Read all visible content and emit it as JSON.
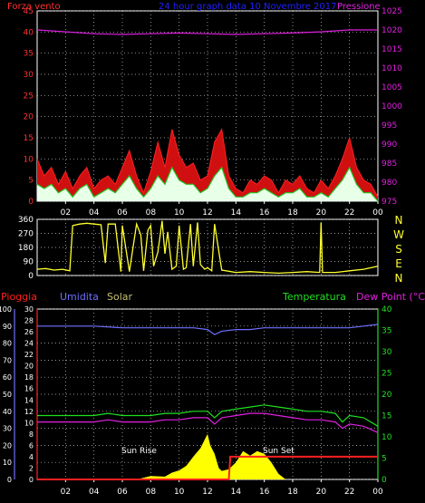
{
  "header": {
    "left": "Forza vento",
    "center": "24 hour graph data  10 Novembre 2017",
    "right": "Pressione"
  },
  "colors": {
    "grid": "#c8c8c8",
    "wind_axis": "#ff3030",
    "pressure_axis": "#e020e0",
    "direction": "#ffff30",
    "rain": "#ff2020",
    "humidity": "#6f6fff",
    "temperature": "#20e020",
    "dewpoint": "#e020e0",
    "solar": "#ffff00",
    "frame": "#ffffff"
  },
  "panel2_labels": {
    "rain": "Pioggia",
    "humidity": "Umidita",
    "solar": "Solar",
    "temperature": "Temperatura",
    "dewpoint": "Dew Point (°C)"
  },
  "compass": [
    "N",
    "W",
    "S",
    "E",
    "N"
  ],
  "sun_labels": {
    "rise": "Sun Rise",
    "set": "Sun Set"
  },
  "chart_data": [
    {
      "type": "line",
      "title": "24 hour graph data  10 Novembre 2017",
      "x_tick_labels": [
        "02",
        "04",
        "06",
        "08",
        "10",
        "12",
        "14",
        "16",
        "18",
        "20",
        "22",
        "00"
      ],
      "xlim": [
        0,
        24
      ],
      "y_left": {
        "label": "Forza vento",
        "ticks": [
          0,
          5,
          10,
          15,
          20,
          25,
          30,
          35,
          40,
          45
        ],
        "ylim": [
          0,
          45
        ]
      },
      "y_right": {
        "label": "Pressione",
        "ticks": [
          975,
          980,
          985,
          990,
          995,
          1000,
          1005,
          1010,
          1015,
          1020,
          1025
        ],
        "ylim": [
          975,
          1025
        ]
      },
      "series": [
        {
          "name": "Pressione",
          "axis": "right",
          "x": [
            0,
            2,
            4,
            6,
            8,
            10,
            12,
            14,
            16,
            18,
            20,
            22,
            24
          ],
          "values": [
            1020,
            1019.5,
            1019,
            1018.8,
            1019,
            1019.2,
            1019,
            1018.8,
            1019,
            1019.2,
            1019.5,
            1020,
            1020
          ]
        },
        {
          "name": "Raffica",
          "axis": "left",
          "x": [
            0,
            0.5,
            1,
            1.5,
            2,
            2.5,
            3,
            3.5,
            4,
            4.5,
            5,
            5.5,
            6,
            6.5,
            7,
            7.5,
            8,
            8.5,
            9,
            9.5,
            10,
            10.5,
            11,
            11.5,
            12,
            12.5,
            13,
            13.5,
            14,
            14.5,
            15,
            15.5,
            16,
            16.5,
            17,
            17.5,
            18,
            18.5,
            19,
            19.5,
            20,
            20.5,
            21,
            21.5,
            22,
            22.5,
            23,
            23.5,
            24
          ],
          "values": [
            10,
            6,
            8,
            4,
            7,
            3,
            6,
            8,
            3,
            5,
            6,
            4,
            8,
            12,
            6,
            2,
            7,
            14,
            8,
            17,
            11,
            8,
            9,
            5,
            6,
            14,
            17,
            6,
            3,
            2,
            5,
            4,
            6,
            5,
            2,
            5,
            4,
            6,
            3,
            2,
            5,
            3,
            6,
            10,
            15,
            8,
            5,
            4,
            1
          ]
        },
        {
          "name": "Vento",
          "axis": "left",
          "x": [
            0,
            0.5,
            1,
            1.5,
            2,
            2.5,
            3,
            3.5,
            4,
            4.5,
            5,
            5.5,
            6,
            6.5,
            7,
            7.5,
            8,
            8.5,
            9,
            9.5,
            10,
            10.5,
            11,
            11.5,
            12,
            12.5,
            13,
            13.5,
            14,
            14.5,
            15,
            15.5,
            16,
            16.5,
            17,
            17.5,
            18,
            18.5,
            19,
            19.5,
            20,
            20.5,
            21,
            21.5,
            22,
            22.5,
            23,
            23.5,
            24
          ],
          "values": [
            4,
            3,
            4,
            2,
            3,
            1,
            3,
            4,
            1,
            2,
            3,
            2,
            4,
            6,
            3,
            1,
            3,
            6,
            4,
            8,
            5,
            4,
            4,
            2,
            3,
            6,
            8,
            3,
            1,
            1,
            2,
            2,
            3,
            2,
            1,
            2,
            2,
            3,
            1,
            1,
            2,
            1,
            3,
            5,
            8,
            4,
            2,
            2,
            0
          ]
        }
      ]
    },
    {
      "type": "line",
      "x_tick_labels": [],
      "xlim": [
        0,
        24
      ],
      "y_left": {
        "ticks": [
          0,
          90,
          180,
          270,
          360
        ],
        "ylim": [
          0,
          360
        ]
      },
      "y_right": {
        "ticks": [
          "N",
          "W",
          "S",
          "E",
          "N"
        ]
      },
      "series": [
        {
          "name": "Direzione vento",
          "x": [
            0,
            0.6,
            1.2,
            1.8,
            2.3,
            2.5,
            3,
            3.5,
            4,
            4.5,
            4.8,
            5,
            5.5,
            5.9,
            6,
            6.5,
            7,
            7.3,
            7.5,
            7.8,
            8,
            8.2,
            8.5,
            8.8,
            9,
            9.2,
            9.5,
            9.8,
            10,
            10.3,
            10.5,
            10.8,
            11,
            11.3,
            11.5,
            11.8,
            12,
            12.3,
            12.5,
            13,
            14,
            15,
            16,
            17,
            18,
            19,
            19.9,
            20,
            20.1,
            21,
            22,
            23,
            24
          ],
          "values": [
            40,
            45,
            35,
            40,
            30,
            320,
            330,
            335,
            330,
            325,
            80,
            330,
            330,
            25,
            320,
            25,
            330,
            260,
            30,
            290,
            320,
            60,
            150,
            350,
            140,
            280,
            40,
            60,
            320,
            40,
            50,
            330,
            60,
            340,
            70,
            40,
            50,
            30,
            330,
            35,
            20,
            25,
            20,
            15,
            20,
            25,
            20,
            340,
            20,
            20,
            30,
            40,
            60
          ]
        }
      ]
    },
    {
      "type": "line",
      "x_tick_labels": [
        "02",
        "04",
        "06",
        "08",
        "10",
        "12",
        "14",
        "16",
        "18",
        "20",
        "22",
        "00"
      ],
      "xlim": [
        0,
        24
      ],
      "y_left_outer": {
        "label": "Umidita",
        "ticks": [
          0,
          10,
          20,
          30,
          40,
          50,
          60,
          70,
          80,
          90,
          100
        ],
        "ylim": [
          0,
          100
        ]
      },
      "y_left_inner": {
        "label": "Pioggia",
        "ticks": [
          0,
          2,
          4,
          6,
          8,
          10,
          12,
          14,
          16,
          18,
          20,
          22,
          24,
          26,
          28,
          30
        ],
        "ylim": [
          0,
          30
        ]
      },
      "y_right": {
        "label": "Temperatura / Dew Point (°C)",
        "ticks": [
          0,
          5,
          10,
          15,
          20,
          25,
          30,
          35,
          40
        ],
        "ylim": [
          0,
          40
        ]
      },
      "series": [
        {
          "name": "Umidita",
          "axis": "outer",
          "x": [
            0,
            2,
            4,
            6,
            8,
            10,
            11,
            12,
            12.5,
            13,
            14,
            15,
            16,
            17,
            18,
            20,
            22,
            23,
            24
          ],
          "values": [
            90,
            90,
            90,
            89,
            89,
            89,
            89,
            88,
            85,
            87,
            88,
            88,
            89,
            89,
            89,
            89,
            89,
            90,
            91
          ]
        },
        {
          "name": "Temperatura",
          "axis": "right",
          "x": [
            0,
            1,
            2,
            3,
            4,
            5,
            6,
            7,
            8,
            9,
            10,
            11,
            12,
            12.5,
            13,
            14,
            15,
            16,
            17,
            18,
            19,
            20,
            21,
            21.5,
            22,
            23,
            24
          ],
          "values": [
            15,
            15,
            15,
            15,
            15,
            15.5,
            15,
            15,
            15,
            15.5,
            15.5,
            16,
            16,
            14.5,
            16,
            16.5,
            17,
            17.5,
            17,
            16.5,
            16,
            16,
            15.5,
            13.5,
            15,
            14.5,
            12.5
          ]
        },
        {
          "name": "Dew Point",
          "axis": "right",
          "x": [
            0,
            1,
            2,
            3,
            4,
            5,
            6,
            7,
            8,
            9,
            10,
            11,
            12,
            12.5,
            13,
            14,
            15,
            16,
            17,
            18,
            19,
            20,
            21,
            21.5,
            22,
            23,
            24
          ],
          "values": [
            13.5,
            13.5,
            13.5,
            13.5,
            13.5,
            14,
            13.5,
            13.5,
            13.5,
            14,
            14,
            14.5,
            14.5,
            13,
            14.5,
            15,
            15.5,
            15.5,
            15,
            14.5,
            14,
            14,
            13.5,
            12,
            13,
            12.5,
            11
          ]
        },
        {
          "name": "Solar",
          "axis": "inner",
          "x": [
            0,
            6,
            7,
            8,
            9,
            9.5,
            10,
            10.5,
            11,
            11.5,
            12,
            12.2,
            12.5,
            12.8,
            13,
            13.5,
            14,
            14.5,
            15,
            15.5,
            16,
            16.5,
            17,
            17.5,
            24
          ],
          "values": [
            0,
            0,
            0,
            0.6,
            0.5,
            1.2,
            1.6,
            2.4,
            4,
            5.5,
            8,
            6,
            4.5,
            2,
            1.5,
            1.8,
            3,
            5,
            4.2,
            5,
            4.5,
            3,
            1,
            0,
            0
          ]
        },
        {
          "name": "Pioggia",
          "axis": "inner",
          "x": [
            0,
            13.5,
            13.6,
            24
          ],
          "values": [
            0,
            0,
            4,
            4
          ]
        }
      ]
    }
  ]
}
